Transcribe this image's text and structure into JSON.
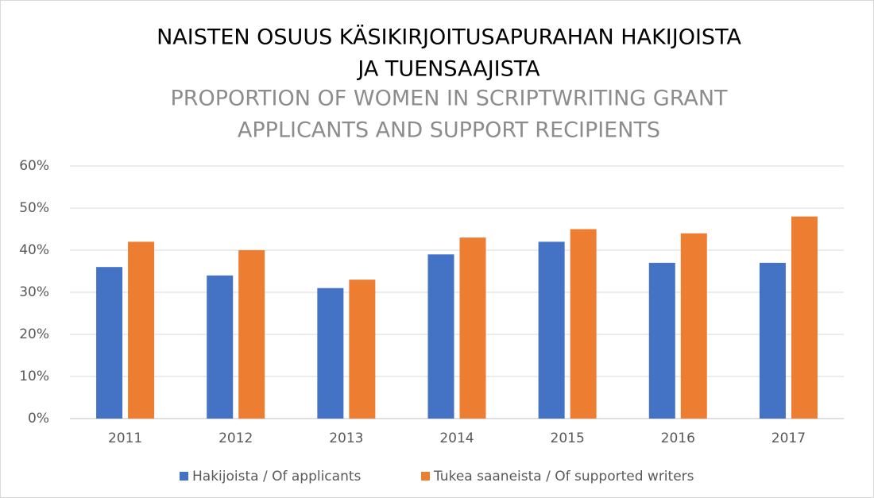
{
  "chart_data": {
    "type": "bar",
    "title": [
      "NAISTEN OSUUS KÄSIKIRJOITUSAPURAHAN HAKIJOISTA",
      "JA TUENSAAJISTA"
    ],
    "subtitle": [
      "PROPORTION OF WOMEN IN SCRIPTWRITING GRANT",
      "APPLICANTS AND SUPPORT RECIPIENTS"
    ],
    "categories": [
      "2011",
      "2012",
      "2013",
      "2014",
      "2015",
      "2016",
      "2017"
    ],
    "series": [
      {
        "name": "Hakijoista / Of applicants",
        "color": "#4472c4",
        "values": [
          36,
          34,
          31,
          39,
          42,
          37,
          37
        ]
      },
      {
        "name": "Tukea saaneista / Of supported writers",
        "color": "#ed7d31",
        "values": [
          42,
          40,
          33,
          43,
          45,
          44,
          48
        ]
      }
    ],
    "ylim": [
      0,
      60
    ],
    "yticks": [
      {
        "value": 0,
        "label": "0%"
      },
      {
        "value": 10,
        "label": "10%"
      },
      {
        "value": 20,
        "label": "20%"
      },
      {
        "value": 30,
        "label": "30%"
      },
      {
        "value": 40,
        "label": "40%"
      },
      {
        "value": 50,
        "label": "50%"
      },
      {
        "value": 60,
        "label": "60%"
      }
    ],
    "grid": true,
    "legend": "bottom"
  }
}
